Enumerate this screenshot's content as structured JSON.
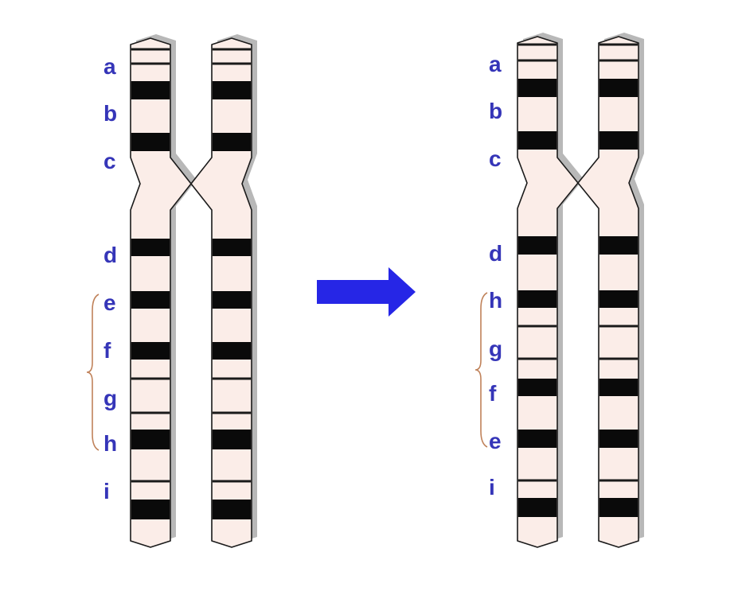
{
  "panels": [
    {
      "id": "original",
      "labels": [
        "a",
        "b",
        "c",
        "d",
        "e",
        "f",
        "g",
        "h",
        "i"
      ]
    },
    {
      "id": "inverted",
      "labels": [
        "a",
        "b",
        "c",
        "d",
        "h",
        "g",
        "f",
        "e",
        "i"
      ]
    }
  ],
  "colors": {
    "chromosome_fill": "#fbede8",
    "band": "#0a0a0a",
    "label": "#3535b8",
    "bracket": "#c0825a",
    "arrow": "#2626e6"
  },
  "icons": {
    "arrow": "right-arrow-icon"
  }
}
